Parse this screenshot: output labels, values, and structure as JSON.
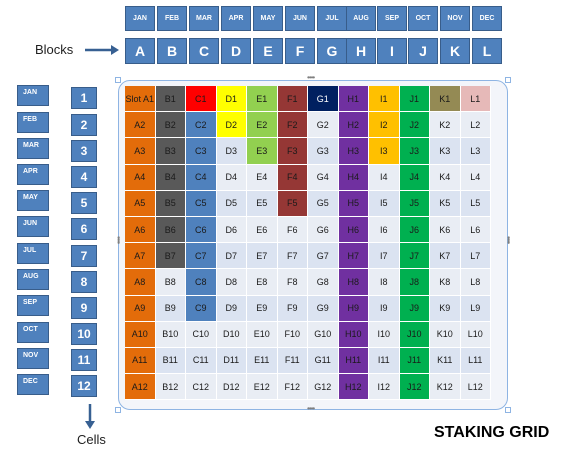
{
  "months": [
    "JAN",
    "FEB",
    "MAR",
    "APR",
    "MAY",
    "JUN",
    "JUL",
    "AUG",
    "SEP",
    "OCT",
    "NOV",
    "DEC"
  ],
  "blocks": [
    "A",
    "B",
    "C",
    "D",
    "E",
    "F",
    "G",
    "H",
    "I",
    "J",
    "K",
    "L"
  ],
  "cells": [
    "1",
    "2",
    "3",
    "4",
    "5",
    "6",
    "7",
    "8",
    "9",
    "10",
    "11",
    "12"
  ],
  "labels": {
    "blocks": "Blocks",
    "cells": "Cells"
  },
  "title": "STAKING GRID",
  "grid": {
    "rows": [
      [
        "Slot A1",
        "B1",
        "C1",
        "D1",
        "E1",
        "F1",
        "G1",
        "H1",
        "I1",
        "J1",
        "K1",
        "L1"
      ],
      [
        "A2",
        "B2",
        "C2",
        "D2",
        "E2",
        "F2",
        "G2",
        "H2",
        "I2",
        "J2",
        "K2",
        "L2"
      ],
      [
        "A3",
        "B3",
        "C3",
        "D3",
        "E3",
        "F3",
        "G3",
        "H3",
        "I3",
        "J3",
        "K3",
        "L3"
      ],
      [
        "A4",
        "B4",
        "C4",
        "D4",
        "E4",
        "F4",
        "G4",
        "H4",
        "I4",
        "J4",
        "K4",
        "L4"
      ],
      [
        "A5",
        "B5",
        "C5",
        "D5",
        "E5",
        "F5",
        "G5",
        "H5",
        "I5",
        "J5",
        "K5",
        "L5"
      ],
      [
        "A6",
        "B6",
        "C6",
        "D6",
        "E6",
        "F6",
        "G6",
        "H6",
        "I6",
        "J6",
        "K6",
        "L6"
      ],
      [
        "A7",
        "B7",
        "C7",
        "D7",
        "E7",
        "F7",
        "G7",
        "H7",
        "I7",
        "J7",
        "K7",
        "L7"
      ],
      [
        "A8",
        "B8",
        "C8",
        "D8",
        "E8",
        "F8",
        "G8",
        "H8",
        "I8",
        "J8",
        "K8",
        "L8"
      ],
      [
        "A9",
        "B9",
        "C9",
        "D9",
        "E9",
        "F9",
        "G9",
        "H9",
        "I9",
        "J9",
        "K9",
        "L9"
      ],
      [
        "A10",
        "B10",
        "C10",
        "D10",
        "E10",
        "F10",
        "G10",
        "H10",
        "I10",
        "J10",
        "K10",
        "L10"
      ],
      [
        "A11",
        "B11",
        "C11",
        "D11",
        "E11",
        "F11",
        "G11",
        "H11",
        "I11",
        "J11",
        "K11",
        "L11"
      ],
      [
        "A12",
        "B12",
        "C12",
        "D12",
        "E12",
        "F12",
        "G12",
        "H12",
        "I12",
        "J12",
        "K12",
        "L12"
      ]
    ],
    "column_colors": [
      "#e36c0a",
      "#595959",
      "#4f81bd",
      "#ffff00",
      "#92d050",
      "#953735",
      "#002060",
      "#7030a0",
      "#ffc000",
      "#00b050",
      "#948a54",
      "#e6b9b8"
    ],
    "fill_counts": [
      12,
      7,
      9,
      2,
      3,
      5,
      1,
      12,
      3,
      12,
      1,
      1
    ],
    "first_cell_colors": {
      "C1": "#ff0000"
    },
    "light_colors": [
      "#dbe3f1",
      "#e9edf4"
    ],
    "colors": {
      "header_blue": "#4f81bd",
      "frame_border": "#8eb4e3"
    }
  }
}
